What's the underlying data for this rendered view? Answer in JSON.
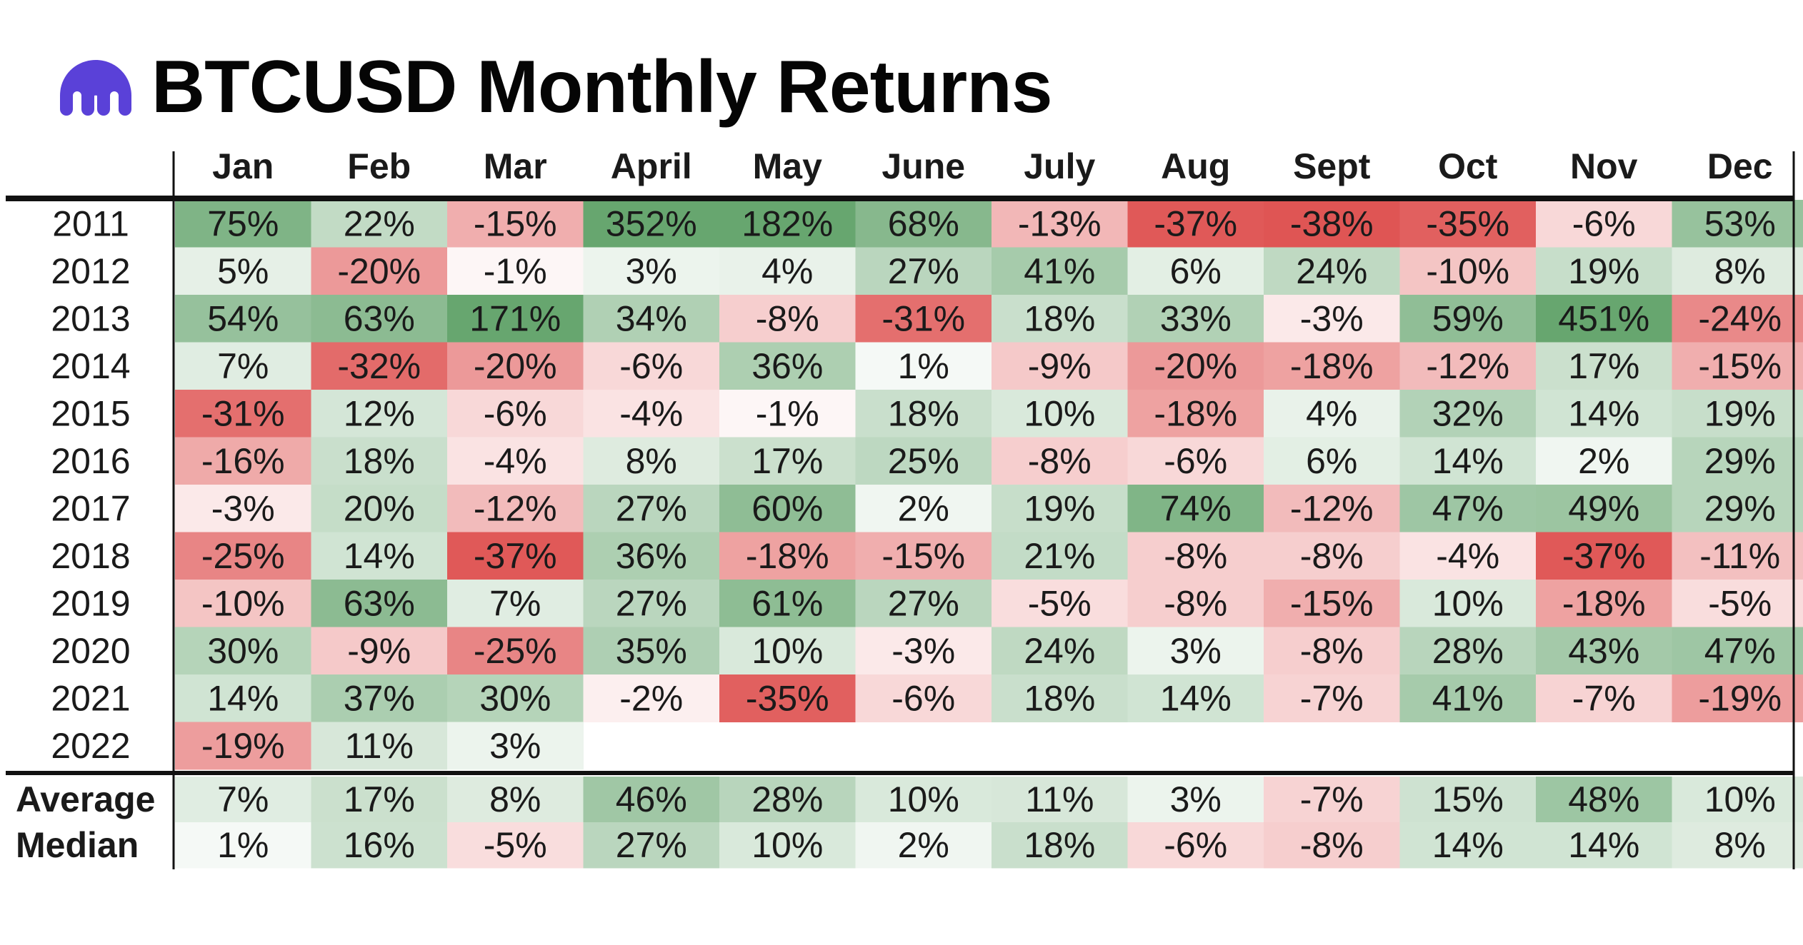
{
  "title": "BTCUSD Monthly Returns",
  "logo_icon": "kraken-logo-icon",
  "colors": {
    "brand": "#5a41d8",
    "positive_max": "#5a9e63",
    "negative_max": "#de4e4d",
    "neutral": "#ffffff",
    "text": "#1a1a1a",
    "rule": "#111111"
  },
  "chart_data": {
    "type": "heatmap",
    "title": "BTCUSD Monthly Returns",
    "columns": [
      "Jan",
      "Feb",
      "Mar",
      "April",
      "May",
      "June",
      "July",
      "Aug",
      "Sept",
      "Oct",
      "Nov",
      "Dec"
    ],
    "rows": [
      "2011",
      "2012",
      "2013",
      "2014",
      "2015",
      "2016",
      "2017",
      "2018",
      "2019",
      "2020",
      "2021",
      "2022"
    ],
    "values": [
      [
        75,
        22,
        -15,
        352,
        182,
        68,
        -13,
        -37,
        -38,
        -35,
        -6,
        53
      ],
      [
        5,
        -20,
        -1,
        3,
        4,
        27,
        41,
        6,
        24,
        -10,
        19,
        8
      ],
      [
        54,
        63,
        171,
        34,
        -8,
        -31,
        18,
        33,
        -3,
        59,
        451,
        -24
      ],
      [
        7,
        -32,
        -20,
        -6,
        36,
        1,
        -9,
        -20,
        -18,
        -12,
        17,
        -15
      ],
      [
        -31,
        12,
        -6,
        -4,
        -1,
        18,
        10,
        -18,
        4,
        32,
        14,
        19
      ],
      [
        -16,
        18,
        -4,
        8,
        17,
        25,
        -8,
        -6,
        6,
        14,
        2,
        29
      ],
      [
        -3,
        20,
        -12,
        27,
        60,
        2,
        19,
        74,
        -12,
        47,
        49,
        29
      ],
      [
        -25,
        14,
        -37,
        36,
        -18,
        -15,
        21,
        -8,
        -8,
        -4,
        -37,
        -11
      ],
      [
        -10,
        63,
        7,
        27,
        61,
        27,
        -5,
        -8,
        -15,
        10,
        -18,
        -5
      ],
      [
        30,
        -9,
        -25,
        35,
        10,
        -3,
        24,
        3,
        -8,
        28,
        43,
        47
      ],
      [
        14,
        37,
        30,
        -2,
        -35,
        -6,
        18,
        14,
        -7,
        41,
        -7,
        -19
      ],
      [
        -19,
        11,
        3,
        null,
        null,
        null,
        null,
        null,
        null,
        null,
        null,
        null
      ]
    ],
    "summary_rows": [
      {
        "label": "Average",
        "values": [
          7,
          17,
          8,
          46,
          28,
          10,
          11,
          3,
          -7,
          15,
          48,
          10
        ]
      },
      {
        "label": "Median",
        "values": [
          1,
          16,
          -5,
          27,
          10,
          2,
          18,
          -6,
          -8,
          14,
          14,
          8
        ]
      }
    ],
    "unit": "%"
  }
}
